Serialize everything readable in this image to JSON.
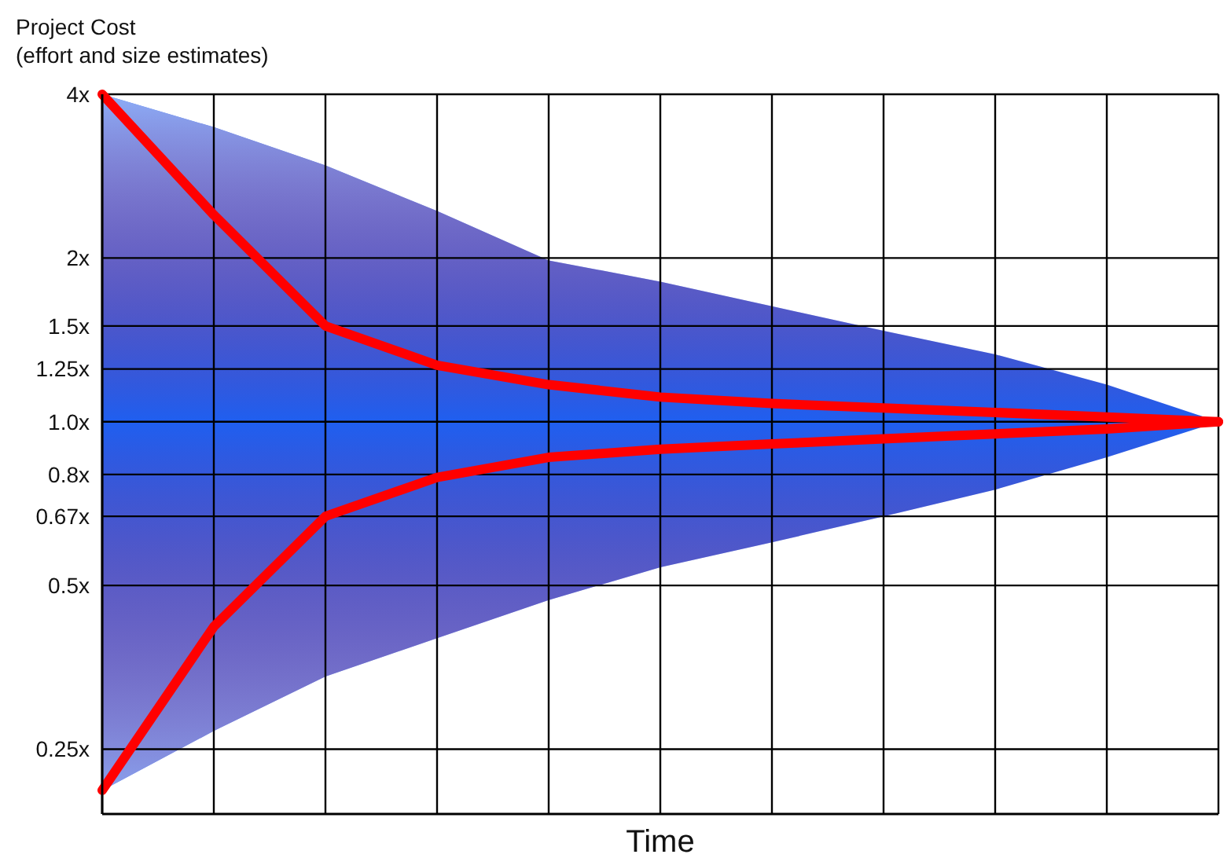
{
  "chart_data": {
    "type": "line",
    "title": "Project Cost",
    "subtitle": "(effort and size estimates)",
    "xlabel": "Time",
    "categories": [
      null,
      null,
      null,
      null,
      null,
      null,
      null,
      null,
      null,
      null,
      null
    ],
    "ylim": [
      0.19,
      4
    ],
    "log": true,
    "yticks": [
      {
        "value": 0.25,
        "label": "0.25x"
      },
      {
        "value": 0.5,
        "label": "0.5x"
      },
      {
        "value": 0.67,
        "label": "0.67x"
      },
      {
        "value": 0.8,
        "label": "0.8x"
      },
      {
        "value": 1,
        "label": "1.0x"
      },
      {
        "value": 1.25,
        "label": "1.25x"
      },
      {
        "value": 1.5,
        "label": "1.5x"
      },
      {
        "value": 2,
        "label": "2x"
      },
      {
        "value": 4,
        "label": "4x"
      }
    ],
    "tick_labels": "y",
    "grid": true,
    "line_style": "solid",
    "series": [
      {
        "color": "#ff0000",
        "values": [
          4,
          2.4,
          1.5,
          1.27,
          1.17,
          1.11,
          1.08,
          1.06,
          1.04,
          1.02,
          1
        ],
        "upper": [
          4,
          3.48,
          2.96,
          2.44,
          1.98,
          1.81,
          1.63,
          1.47,
          1.33,
          1.17,
          1
        ],
        "lower": [
          0.21,
          0.27,
          0.34,
          0.4,
          0.47,
          0.54,
          0.6,
          0.67,
          0.75,
          0.86,
          1
        ]
      },
      {
        "color": "#ff0000",
        "values": [
          0.21,
          0.42,
          0.67,
          0.79,
          0.86,
          0.89,
          0.91,
          0.93,
          0.95,
          0.97,
          1
        ]
      }
    ]
  }
}
